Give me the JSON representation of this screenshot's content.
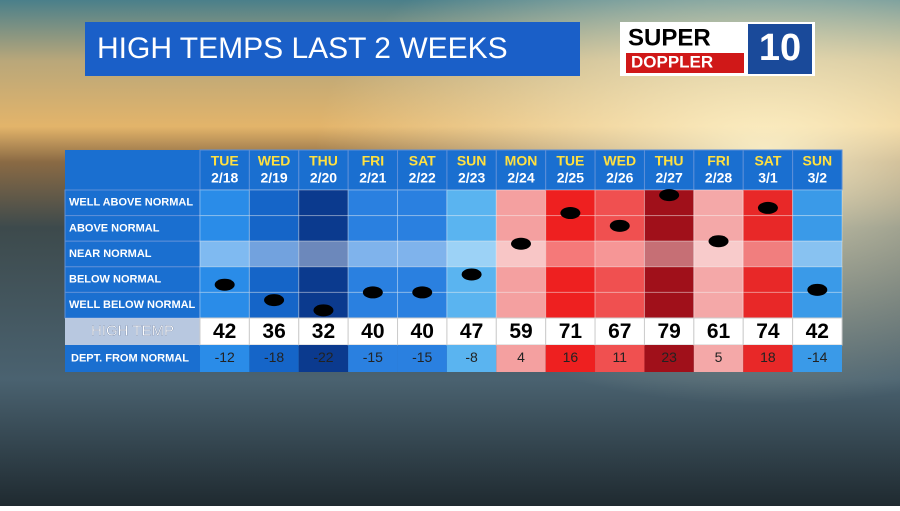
{
  "chart_data": {
    "type": "dot_grid",
    "title": "HIGH TEMPS LAST 2 WEEKS",
    "logo": {
      "line1": "SUPER",
      "line2": "DOPPLER",
      "number": "10"
    },
    "weekdays": [
      "TUE",
      "WED",
      "THU",
      "FRI",
      "SAT",
      "SUN",
      "MON",
      "TUE",
      "WED",
      "THU",
      "FRI",
      "SAT",
      "SUN"
    ],
    "categories": [
      "2/18",
      "2/19",
      "2/20",
      "2/21",
      "2/22",
      "2/23",
      "2/24",
      "2/25",
      "2/26",
      "2/27",
      "2/28",
      "3/1",
      "3/2"
    ],
    "rows": [
      "WELL ABOVE NORMAL",
      "ABOVE NORMAL",
      "NEAR NORMAL",
      "BELOW NORMAL",
      "WELL BELOW NORMAL"
    ],
    "series": [
      {
        "name": "HIGH TEMP",
        "values": [
          42,
          36,
          32,
          40,
          40,
          47,
          59,
          71,
          67,
          79,
          61,
          74,
          42
        ]
      },
      {
        "name": "DEPT. FROM NORMAL",
        "values": [
          -12,
          -18,
          -22,
          -15,
          -15,
          -8,
          4,
          16,
          11,
          23,
          5,
          18,
          -14
        ]
      }
    ],
    "colors": [
      "#2a8ce8",
      "#1565c8",
      "#0b3a8e",
      "#2a80e0",
      "#2a80e0",
      "#5ab4f0",
      "#f4a0a0",
      "#ee2020",
      "#f05050",
      "#a0101a",
      "#f4a8a8",
      "#e82828",
      "#3a9ae8"
    ],
    "ylim": [
      -25,
      25
    ]
  }
}
